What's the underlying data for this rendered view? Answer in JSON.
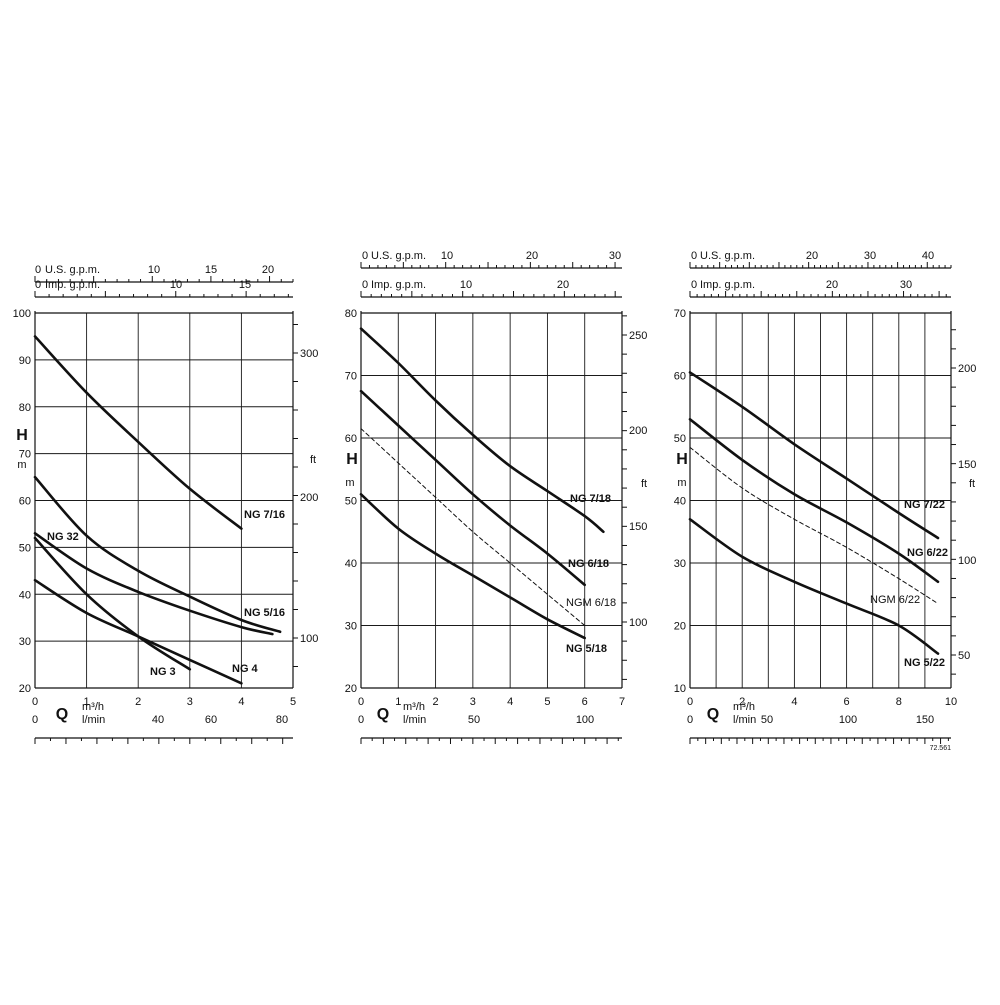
{
  "chart_data": [
    {
      "type": "line",
      "x_main": {
        "range": [
          0,
          5
        ],
        "ticks": [
          "0",
          "1",
          "2",
          "3",
          "4",
          "5"
        ],
        "letter": "Q",
        "unit": "m³/h"
      },
      "x_lmin": {
        "range": [
          0,
          83.33
        ],
        "ticks": [
          "0",
          "40",
          "60",
          "80"
        ],
        "tick_values": [
          0,
          40,
          60,
          80
        ],
        "unit": "l/min"
      },
      "x_usgpm": {
        "range": [
          0,
          22
        ],
        "ticks": [
          "0",
          "10",
          "15",
          "20"
        ],
        "tick_values": [
          0,
          10,
          15,
          20
        ],
        "unit": "U.S. g.p.m."
      },
      "x_impgpm": {
        "range": [
          0,
          18.33
        ],
        "ticks": [
          "0",
          "10",
          "15"
        ],
        "tick_values": [
          0,
          10,
          15
        ],
        "unit": "Imp. g.p.m."
      },
      "y_main": {
        "range": [
          20,
          100
        ],
        "ticks": [
          "20",
          "30",
          "40",
          "50",
          "60",
          "70",
          "80",
          "90",
          "100"
        ],
        "letter": "H",
        "unit": "m"
      },
      "y_ft": {
        "ticks": [
          "100",
          "200",
          "300"
        ],
        "tick_values": [
          100,
          200,
          300
        ],
        "unit": "ft"
      },
      "series": [
        {
          "name": "NG 7/16",
          "points": [
            [
              0,
              95
            ],
            [
              1,
              83
            ],
            [
              2,
              72.5
            ],
            [
              3,
              62.5
            ],
            [
              4,
              54
            ]
          ]
        },
        {
          "name": "NG 5/16",
          "points": [
            [
              0,
              65
            ],
            [
              1,
              52.5
            ],
            [
              2,
              45
            ],
            [
              3,
              39.5
            ],
            [
              4,
              34.5
            ],
            [
              4.75,
              32
            ]
          ]
        },
        {
          "name": "NG 32",
          "points": [
            [
              0,
              53
            ],
            [
              1,
              45.5
            ],
            [
              2,
              40.5
            ],
            [
              3,
              36.5
            ],
            [
              4,
              33
            ],
            [
              4.6,
              31.5
            ]
          ]
        },
        {
          "name": "NG 4",
          "points": [
            [
              0,
              43
            ],
            [
              1,
              36
            ],
            [
              2,
              31
            ],
            [
              3,
              26
            ],
            [
              4,
              21
            ]
          ]
        },
        {
          "name": "NG 3",
          "points": [
            [
              0,
              52
            ],
            [
              1,
              40
            ],
            [
              2,
              31
            ],
            [
              3,
              24
            ]
          ]
        }
      ]
    },
    {
      "type": "line",
      "x_main": {
        "range": [
          0,
          7
        ],
        "ticks": [
          "0",
          "1",
          "2",
          "3",
          "4",
          "5",
          "6",
          "7"
        ],
        "letter": "Q",
        "unit": "m³/h"
      },
      "x_lmin": {
        "range": [
          0,
          116.67
        ],
        "ticks": [
          "0",
          "50",
          "100"
        ],
        "tick_values": [
          0,
          50,
          100
        ],
        "unit": "l/min"
      },
      "x_usgpm": {
        "range": [
          0,
          30.82
        ],
        "ticks": [
          "0",
          "10",
          "20",
          "30"
        ],
        "tick_values": [
          0,
          10,
          20,
          30
        ],
        "unit": "U.S. g.p.m."
      },
      "x_impgpm": {
        "range": [
          0,
          25.67
        ],
        "ticks": [
          "0",
          "10",
          "20"
        ],
        "tick_values": [
          0,
          10,
          20
        ],
        "unit": "Imp. g.p.m."
      },
      "y_main": {
        "range": [
          20,
          80
        ],
        "ticks": [
          "20",
          "30",
          "40",
          "50",
          "60",
          "70",
          "80"
        ],
        "letter": "H",
        "unit": "m"
      },
      "y_ft": {
        "ticks": [
          "100",
          "150",
          "200",
          "250"
        ],
        "tick_values": [
          100,
          150,
          200,
          250
        ],
        "unit": "ft"
      },
      "series": [
        {
          "name": "NG 7/18",
          "points": [
            [
              0,
              77.5
            ],
            [
              1,
              72
            ],
            [
              2,
              66
            ],
            [
              3,
              60.5
            ],
            [
              4,
              55.5
            ],
            [
              5,
              51.5
            ],
            [
              6,
              47.5
            ],
            [
              6.5,
              45
            ]
          ]
        },
        {
          "name": "NG 6/18",
          "points": [
            [
              0,
              67.5
            ],
            [
              1,
              62
            ],
            [
              2,
              56.5
            ],
            [
              3,
              51
            ],
            [
              4,
              46
            ],
            [
              5,
              41.5
            ],
            [
              6,
              36.5
            ]
          ]
        },
        {
          "name": "NGM 6/18",
          "dashed": true,
          "points": [
            [
              0,
              61.5
            ],
            [
              1,
              56
            ],
            [
              2,
              50.5
            ],
            [
              3,
              45
            ],
            [
              4,
              40
            ],
            [
              5,
              35
            ],
            [
              6,
              30
            ]
          ]
        },
        {
          "name": "NG 5/18",
          "points": [
            [
              0,
              51
            ],
            [
              1,
              45.5
            ],
            [
              2,
              41.5
            ],
            [
              3,
              38
            ],
            [
              4,
              34.5
            ],
            [
              5,
              31
            ],
            [
              6,
              28
            ]
          ]
        }
      ]
    },
    {
      "type": "line",
      "x_main": {
        "range": [
          0,
          10
        ],
        "ticks": [
          "0",
          "2",
          "4",
          "6",
          "8",
          "10"
        ],
        "tick_values": [
          0,
          2,
          4,
          6,
          8,
          10
        ],
        "letter": "Q",
        "unit": "m³/h"
      },
      "x_lmin": {
        "range": [
          0,
          166.67
        ],
        "ticks": [
          "0",
          "50",
          "100",
          "150"
        ],
        "tick_values": [
          0,
          50,
          100,
          150
        ],
        "unit": "l/min"
      },
      "x_usgpm": {
        "range": [
          0,
          44
        ],
        "ticks": [
          "0",
          "20",
          "30",
          "40"
        ],
        "tick_values": [
          0,
          20,
          30,
          40
        ],
        "unit": "U.S. g.p.m."
      },
      "x_impgpm": {
        "range": [
          0,
          36.67
        ],
        "ticks": [
          "0",
          "20",
          "30"
        ],
        "tick_values": [
          0,
          20,
          30
        ],
        "unit": "Imp. g.p.m."
      },
      "y_main": {
        "range": [
          10,
          70
        ],
        "ticks": [
          "10",
          "20",
          "30",
          "40",
          "50",
          "60",
          "70"
        ],
        "letter": "H",
        "unit": "m"
      },
      "y_ft": {
        "ticks": [
          "50",
          "100",
          "150",
          "200"
        ],
        "tick_values": [
          50,
          100,
          150,
          200
        ],
        "unit": "ft"
      },
      "footnote": "72.561",
      "series": [
        {
          "name": "NG 7/22",
          "points": [
            [
              0,
              60.5
            ],
            [
              2,
              55
            ],
            [
              4,
              49
            ],
            [
              6,
              43.5
            ],
            [
              8,
              38
            ],
            [
              9.5,
              34
            ]
          ]
        },
        {
          "name": "NG 6/22",
          "points": [
            [
              0,
              53
            ],
            [
              2,
              46.5
            ],
            [
              4,
              41
            ],
            [
              6,
              36.5
            ],
            [
              8,
              31.5
            ],
            [
              9.5,
              27
            ]
          ]
        },
        {
          "name": "NGM 6/22",
          "dashed": true,
          "points": [
            [
              0,
              48.5
            ],
            [
              2,
              42
            ],
            [
              4,
              37
            ],
            [
              6,
              32.5
            ],
            [
              8,
              27.5
            ],
            [
              9.5,
              23.5
            ]
          ]
        },
        {
          "name": "NG 5/22",
          "points": [
            [
              0,
              37
            ],
            [
              2,
              31
            ],
            [
              4,
              27
            ],
            [
              6,
              23.5
            ],
            [
              8,
              20
            ],
            [
              9.5,
              15.5
            ]
          ]
        }
      ]
    }
  ]
}
